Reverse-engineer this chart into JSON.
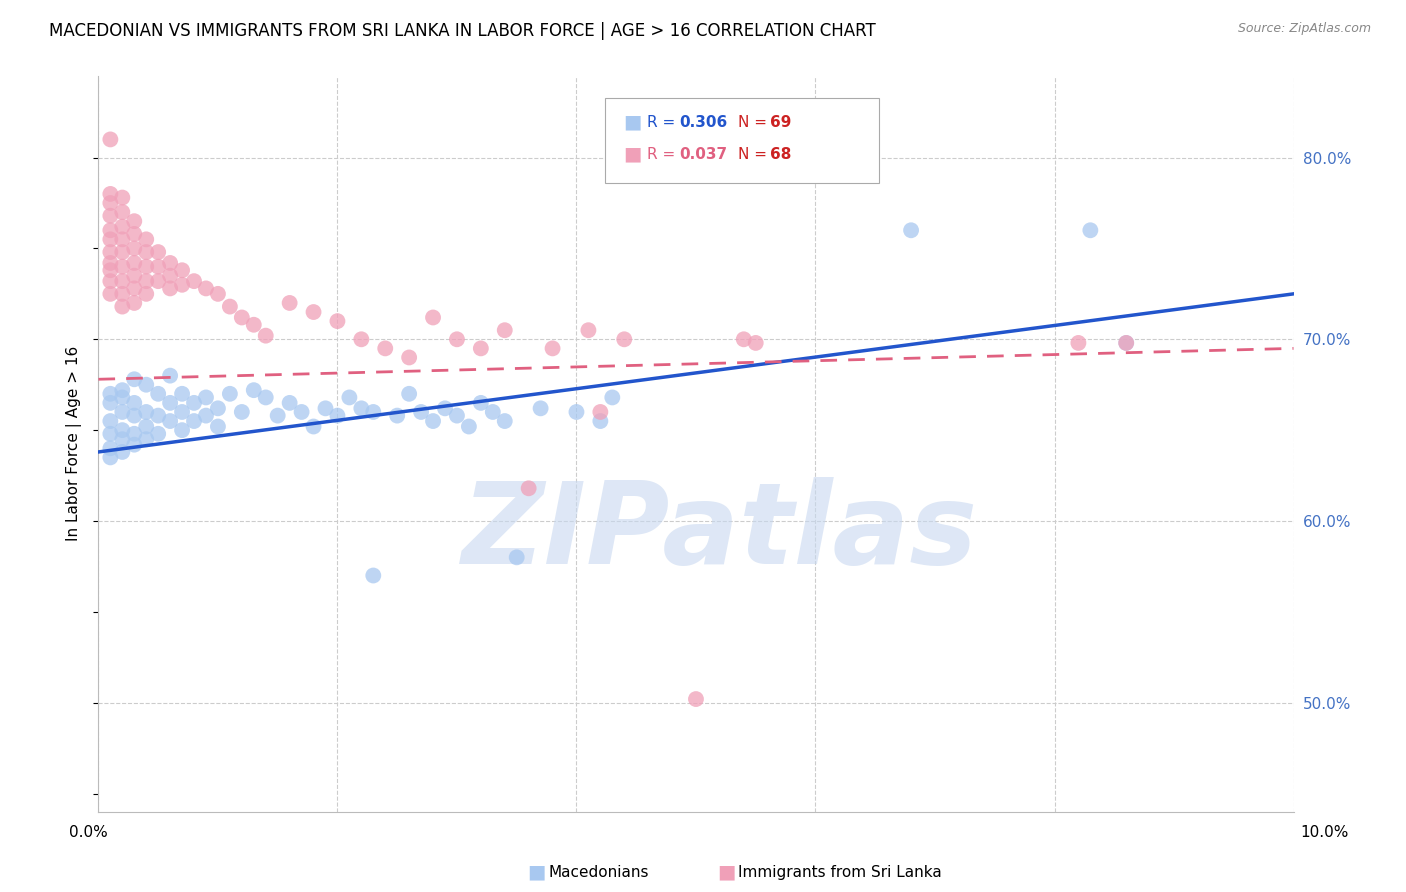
{
  "title": "MACEDONIAN VS IMMIGRANTS FROM SRI LANKA IN LABOR FORCE | AGE > 16 CORRELATION CHART",
  "source": "Source: ZipAtlas.com",
  "ylabel": "In Labor Force | Age > 16",
  "yticks": [
    0.5,
    0.6,
    0.7,
    0.8
  ],
  "ytick_labels": [
    "50.0%",
    "60.0%",
    "70.0%",
    "80.0%"
  ],
  "xmin": 0.0,
  "xmax": 0.1,
  "ymin": 0.44,
  "ymax": 0.845,
  "blue_color": "#A8C8F0",
  "pink_color": "#F0A0B8",
  "blue_line_color": "#2255CC",
  "pink_line_color": "#E06080",
  "blue_line_y0": 0.638,
  "blue_line_y1": 0.725,
  "pink_line_y0": 0.678,
  "pink_line_y1": 0.695,
  "watermark": "ZIPatlas",
  "watermark_color": "#C8D8F0",
  "title_fontsize": 13,
  "axis_label_fontsize": 11,
  "tick_fontsize": 11,
  "blue_scatter": [
    [
      0.001,
      0.67
    ],
    [
      0.001,
      0.655
    ],
    [
      0.001,
      0.648
    ],
    [
      0.001,
      0.64
    ],
    [
      0.001,
      0.635
    ],
    [
      0.001,
      0.665
    ],
    [
      0.002,
      0.672
    ],
    [
      0.002,
      0.66
    ],
    [
      0.002,
      0.65
    ],
    [
      0.002,
      0.645
    ],
    [
      0.002,
      0.638
    ],
    [
      0.002,
      0.668
    ],
    [
      0.003,
      0.678
    ],
    [
      0.003,
      0.665
    ],
    [
      0.003,
      0.658
    ],
    [
      0.003,
      0.648
    ],
    [
      0.003,
      0.642
    ],
    [
      0.004,
      0.675
    ],
    [
      0.004,
      0.66
    ],
    [
      0.004,
      0.652
    ],
    [
      0.004,
      0.645
    ],
    [
      0.005,
      0.67
    ],
    [
      0.005,
      0.658
    ],
    [
      0.005,
      0.648
    ],
    [
      0.006,
      0.68
    ],
    [
      0.006,
      0.665
    ],
    [
      0.006,
      0.655
    ],
    [
      0.007,
      0.67
    ],
    [
      0.007,
      0.66
    ],
    [
      0.007,
      0.65
    ],
    [
      0.008,
      0.665
    ],
    [
      0.008,
      0.655
    ],
    [
      0.009,
      0.668
    ],
    [
      0.009,
      0.658
    ],
    [
      0.01,
      0.662
    ],
    [
      0.01,
      0.652
    ],
    [
      0.011,
      0.67
    ],
    [
      0.012,
      0.66
    ],
    [
      0.013,
      0.672
    ],
    [
      0.014,
      0.668
    ],
    [
      0.015,
      0.658
    ],
    [
      0.016,
      0.665
    ],
    [
      0.017,
      0.66
    ],
    [
      0.018,
      0.652
    ],
    [
      0.019,
      0.662
    ],
    [
      0.02,
      0.658
    ],
    [
      0.021,
      0.668
    ],
    [
      0.022,
      0.662
    ],
    [
      0.023,
      0.57
    ],
    [
      0.023,
      0.66
    ],
    [
      0.025,
      0.658
    ],
    [
      0.026,
      0.67
    ],
    [
      0.027,
      0.66
    ],
    [
      0.028,
      0.655
    ],
    [
      0.029,
      0.662
    ],
    [
      0.03,
      0.658
    ],
    [
      0.031,
      0.652
    ],
    [
      0.032,
      0.665
    ],
    [
      0.033,
      0.66
    ],
    [
      0.034,
      0.655
    ],
    [
      0.035,
      0.58
    ],
    [
      0.037,
      0.662
    ],
    [
      0.04,
      0.66
    ],
    [
      0.042,
      0.655
    ],
    [
      0.043,
      0.668
    ],
    [
      0.068,
      0.76
    ],
    [
      0.083,
      0.76
    ],
    [
      0.086,
      0.698
    ]
  ],
  "pink_scatter": [
    [
      0.001,
      0.81
    ],
    [
      0.001,
      0.78
    ],
    [
      0.001,
      0.775
    ],
    [
      0.001,
      0.768
    ],
    [
      0.001,
      0.76
    ],
    [
      0.001,
      0.755
    ],
    [
      0.001,
      0.748
    ],
    [
      0.001,
      0.742
    ],
    [
      0.001,
      0.738
    ],
    [
      0.001,
      0.732
    ],
    [
      0.001,
      0.725
    ],
    [
      0.002,
      0.778
    ],
    [
      0.002,
      0.77
    ],
    [
      0.002,
      0.762
    ],
    [
      0.002,
      0.755
    ],
    [
      0.002,
      0.748
    ],
    [
      0.002,
      0.74
    ],
    [
      0.002,
      0.732
    ],
    [
      0.002,
      0.725
    ],
    [
      0.002,
      0.718
    ],
    [
      0.003,
      0.765
    ],
    [
      0.003,
      0.758
    ],
    [
      0.003,
      0.75
    ],
    [
      0.003,
      0.742
    ],
    [
      0.003,
      0.735
    ],
    [
      0.003,
      0.728
    ],
    [
      0.003,
      0.72
    ],
    [
      0.004,
      0.755
    ],
    [
      0.004,
      0.748
    ],
    [
      0.004,
      0.74
    ],
    [
      0.004,
      0.732
    ],
    [
      0.004,
      0.725
    ],
    [
      0.005,
      0.748
    ],
    [
      0.005,
      0.74
    ],
    [
      0.005,
      0.732
    ],
    [
      0.006,
      0.742
    ],
    [
      0.006,
      0.735
    ],
    [
      0.006,
      0.728
    ],
    [
      0.007,
      0.738
    ],
    [
      0.007,
      0.73
    ],
    [
      0.008,
      0.732
    ],
    [
      0.009,
      0.728
    ],
    [
      0.01,
      0.725
    ],
    [
      0.011,
      0.718
    ],
    [
      0.012,
      0.712
    ],
    [
      0.013,
      0.708
    ],
    [
      0.014,
      0.702
    ],
    [
      0.016,
      0.72
    ],
    [
      0.018,
      0.715
    ],
    [
      0.02,
      0.71
    ],
    [
      0.022,
      0.7
    ],
    [
      0.024,
      0.695
    ],
    [
      0.026,
      0.69
    ],
    [
      0.028,
      0.712
    ],
    [
      0.03,
      0.7
    ],
    [
      0.032,
      0.695
    ],
    [
      0.034,
      0.705
    ],
    [
      0.036,
      0.618
    ],
    [
      0.038,
      0.695
    ],
    [
      0.041,
      0.705
    ],
    [
      0.042,
      0.66
    ],
    [
      0.044,
      0.7
    ],
    [
      0.054,
      0.7
    ],
    [
      0.055,
      0.698
    ],
    [
      0.082,
      0.698
    ],
    [
      0.086,
      0.698
    ],
    [
      0.05,
      0.502
    ]
  ]
}
